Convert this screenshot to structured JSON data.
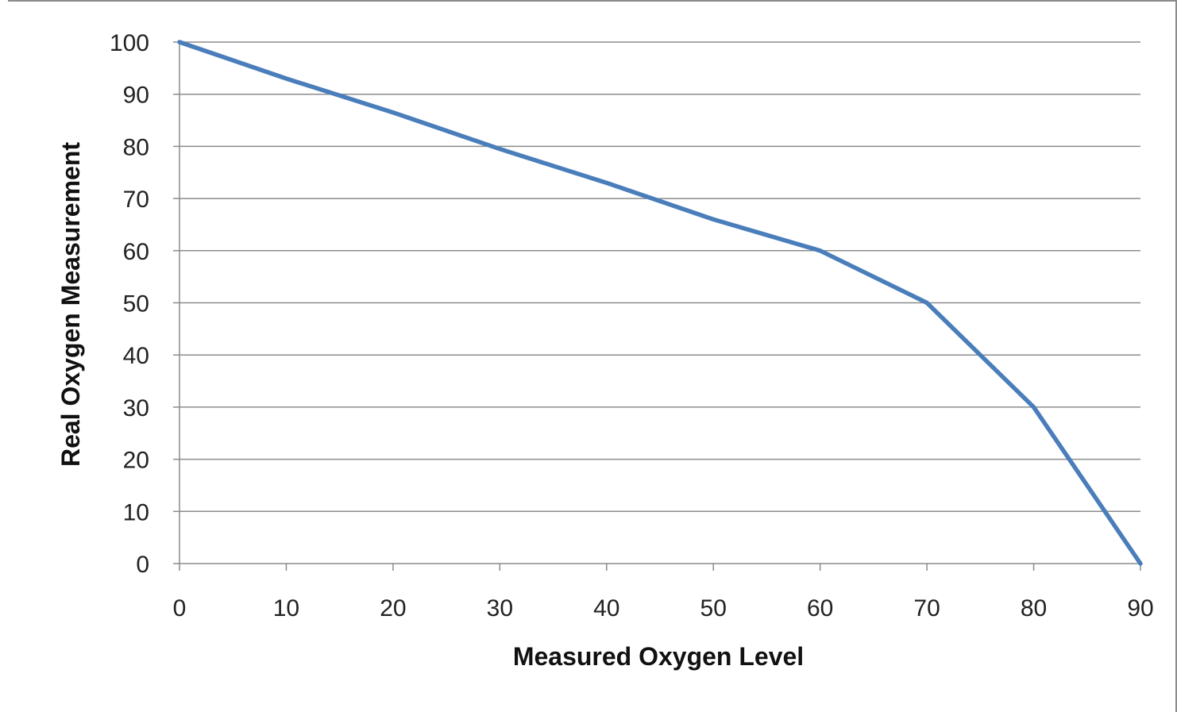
{
  "chart_data": {
    "type": "line",
    "title": "",
    "xlabel": "Measured Oxygen Level",
    "ylabel": "Real Oxygen Measurement",
    "xlim": [
      0,
      90
    ],
    "ylim": [
      0,
      100
    ],
    "x_ticks": [
      "0",
      "10",
      "20",
      "30",
      "40",
      "50",
      "60",
      "70",
      "80",
      "90"
    ],
    "y_ticks": [
      "0",
      "10",
      "20",
      "30",
      "40",
      "50",
      "60",
      "70",
      "80",
      "90",
      "100"
    ],
    "grid": "horizontal",
    "legend": "none",
    "series": [
      {
        "color": "#4a7ebb",
        "points": [
          {
            "x": 0,
            "y": 100
          },
          {
            "x": 10,
            "y": 93
          },
          {
            "x": 20,
            "y": 86.5
          },
          {
            "x": 30,
            "y": 79.5
          },
          {
            "x": 40,
            "y": 73
          },
          {
            "x": 50,
            "y": 66
          },
          {
            "x": 60,
            "y": 60
          },
          {
            "x": 70,
            "y": 50
          },
          {
            "x": 80,
            "y": 30
          },
          {
            "x": 90,
            "y": 0
          }
        ]
      }
    ]
  }
}
